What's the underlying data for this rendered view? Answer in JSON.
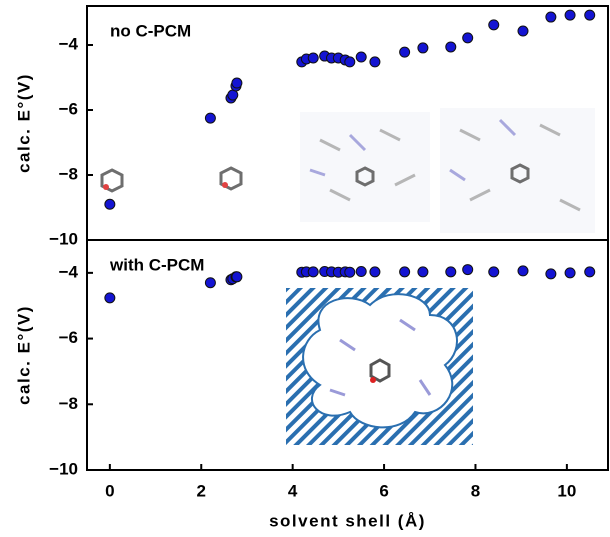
{
  "chart_data": [
    {
      "type": "scatter",
      "annotation": "no C-PCM",
      "ylabel": "calc. E°(V)",
      "x": [
        0,
        2.2,
        2.65,
        2.69,
        2.76,
        2.78,
        4.2,
        4.3,
        4.45,
        4.7,
        4.85,
        5.0,
        5.15,
        5.25,
        5.5,
        5.8,
        6.45,
        6.85,
        7.46,
        7.83,
        8.4,
        9.04,
        9.65,
        10.07,
        10.5
      ],
      "values": [
        -8.9,
        -6.25,
        -5.63,
        -5.54,
        -5.26,
        -5.17,
        -4.52,
        -4.43,
        -4.4,
        -4.34,
        -4.4,
        -4.4,
        -4.46,
        -4.52,
        -4.37,
        -4.52,
        -4.22,
        -4.09,
        -4.06,
        -3.78,
        -3.38,
        -3.57,
        -3.14,
        -3.08,
        -3.08
      ],
      "color": "#1414d2",
      "xlim": [
        -0.5,
        10.9
      ],
      "ylim": [
        -10,
        -2.8
      ],
      "yticks": [
        {
          "value": -10,
          "label": "−10"
        },
        {
          "value": -8,
          "label": "−8"
        },
        {
          "value": -6,
          "label": "−6"
        },
        {
          "value": -4,
          "label": "−4"
        }
      ]
    },
    {
      "type": "scatter",
      "annotation": "with C-PCM",
      "ylabel": "calc. E°(V)",
      "xlabel": "solvent shell (Å)",
      "x": [
        0,
        2.2,
        2.65,
        2.69,
        2.76,
        2.78,
        4.2,
        4.3,
        4.45,
        4.7,
        4.85,
        5.0,
        5.15,
        5.25,
        5.5,
        5.8,
        6.45,
        6.85,
        7.46,
        7.83,
        8.4,
        9.04,
        9.65,
        10.07,
        10.5
      ],
      "values": [
        -4.76,
        -4.3,
        -4.21,
        -4.18,
        -4.12,
        -4.12,
        -3.98,
        -3.97,
        -3.97,
        -3.96,
        -3.97,
        -3.98,
        -3.97,
        -3.98,
        -3.96,
        -3.97,
        -3.97,
        -3.97,
        -3.97,
        -3.9,
        -3.97,
        -3.94,
        -4.03,
        -4.0,
        -3.97
      ],
      "color": "#1414d2",
      "xlim": [
        -0.5,
        10.9
      ],
      "ylim": [
        -10,
        -3.0
      ],
      "xticks": [
        0,
        2,
        4,
        6,
        8,
        10
      ],
      "yticks": [
        {
          "value": -10,
          "label": "−10"
        },
        {
          "value": -8,
          "label": "−8"
        },
        {
          "value": -6,
          "label": "−6"
        },
        {
          "value": -4,
          "label": "−4"
        }
      ]
    }
  ]
}
